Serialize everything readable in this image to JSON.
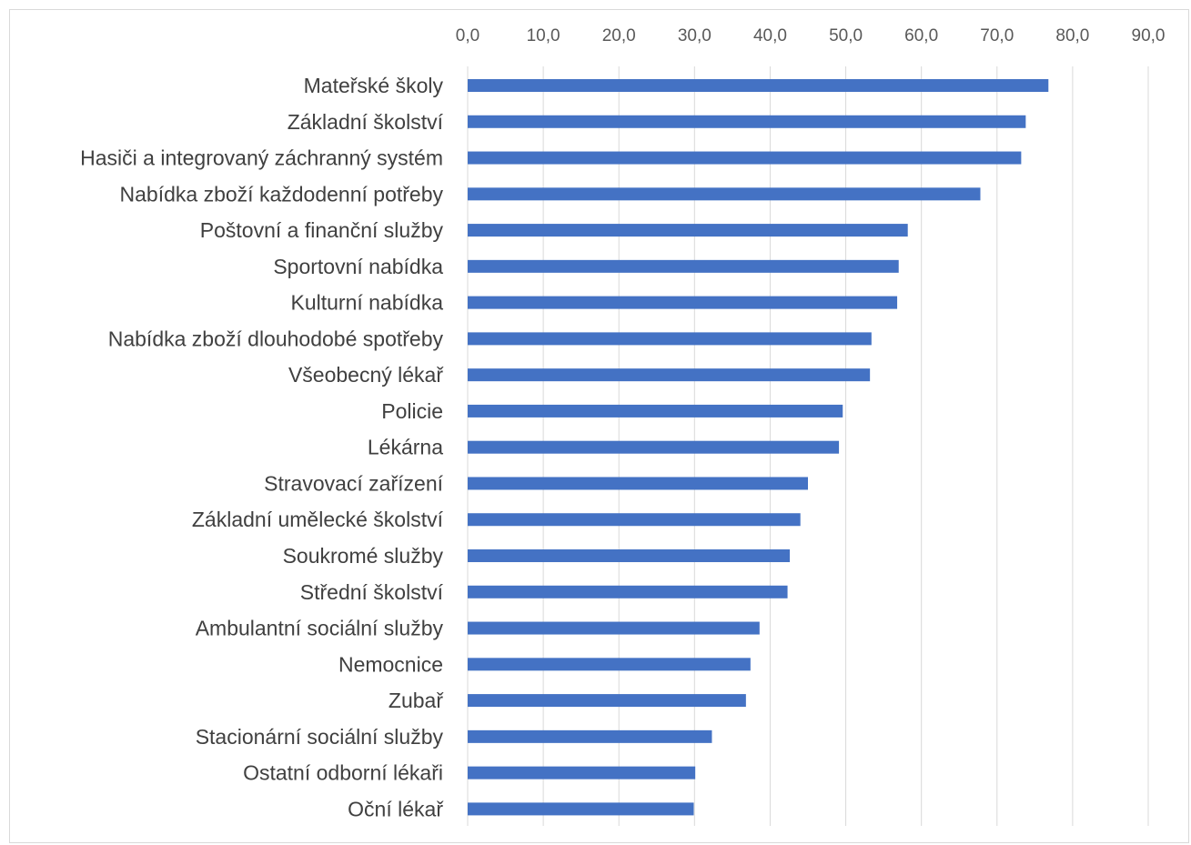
{
  "chart_data": {
    "type": "bar",
    "orientation": "horizontal",
    "title": "",
    "xlabel": "",
    "ylabel": "",
    "x_axis_position": "top",
    "xlim": [
      0,
      90
    ],
    "xticks": [
      "0,0",
      "10,0",
      "20,0",
      "30,0",
      "40,0",
      "50,0",
      "60,0",
      "70,0",
      "80,0",
      "90,0"
    ],
    "grid": true,
    "legend": "none",
    "bar_color": "#4472c4",
    "grid_color": "#d9d9d9",
    "categories": [
      "Mateřské školy",
      "Základní školství",
      "Hasiči a integrovaný záchranný systém",
      "Nabídka zboží každodenní potřeby",
      "Poštovní a finanční služby",
      "Sportovní nabídka",
      "Kulturní nabídka",
      "Nabídka zboží dlouhodobé spotřeby",
      "Všeobecný lékař",
      "Policie",
      "Lékárna",
      "Stravovací zařízení",
      "Základní umělecké školství",
      "Soukromé služby",
      "Střední školství",
      "Ambulantní sociální služby",
      "Nemocnice",
      "Zubař",
      "Stacionární sociální služby",
      "Ostatní odborní lékaři",
      "Oční lékař"
    ],
    "values": [
      76.8,
      73.8,
      73.2,
      67.8,
      58.2,
      57.0,
      56.8,
      53.4,
      53.2,
      49.6,
      49.1,
      45.0,
      44.0,
      42.6,
      42.3,
      38.6,
      37.4,
      36.8,
      32.3,
      30.1,
      29.9
    ]
  }
}
